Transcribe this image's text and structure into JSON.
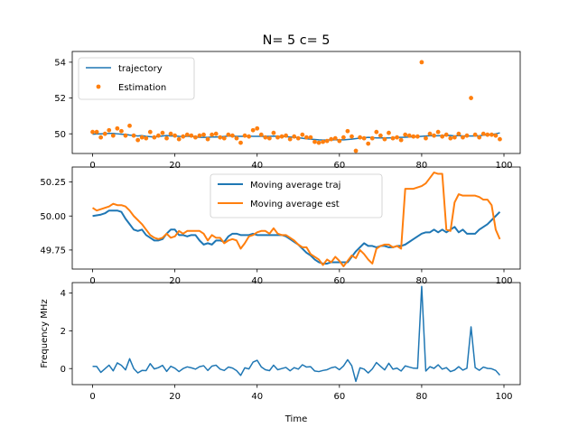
{
  "figure": {
    "title": "N= 5 c= 5"
  },
  "colors": {
    "blue": "#1f77b4",
    "orange": "#ff7f0e"
  },
  "chart_data": [
    {
      "type": "line",
      "legend_position": "upper-left",
      "grid": false,
      "xlim": [
        -4.95,
        103.95
      ],
      "ylim": [
        48.9,
        54.6
      ],
      "xticks": [
        0,
        20,
        40,
        60,
        80,
        100
      ],
      "yticks": [
        50,
        52,
        54
      ],
      "series": [
        {
          "name": "trajectory",
          "style": "line",
          "color": "#1f77b4",
          "x": [
            0,
            1,
            2,
            3,
            4,
            5,
            6,
            7,
            8,
            9,
            10,
            11,
            12,
            13,
            14,
            15,
            16,
            17,
            18,
            19,
            20,
            21,
            22,
            23,
            24,
            25,
            26,
            27,
            28,
            29,
            30,
            31,
            32,
            33,
            34,
            35,
            36,
            37,
            38,
            39,
            40,
            41,
            42,
            43,
            44,
            45,
            46,
            47,
            48,
            49,
            50,
            51,
            52,
            53,
            54,
            55,
            56,
            57,
            58,
            59,
            60,
            61,
            62,
            63,
            64,
            65,
            66,
            67,
            68,
            69,
            70,
            71,
            72,
            73,
            74,
            75,
            76,
            77,
            78,
            79,
            80,
            81,
            82,
            83,
            84,
            85,
            86,
            87,
            88,
            89,
            90,
            91,
            92,
            93,
            94,
            95,
            96,
            97,
            98,
            99
          ],
          "y": [
            49.98,
            49.99,
            50.0,
            50.01,
            50.02,
            50.02,
            50.0,
            49.98,
            49.97,
            49.93,
            49.9,
            49.88,
            49.9,
            49.86,
            49.84,
            49.82,
            49.85,
            49.88,
            49.9,
            49.88,
            49.88,
            49.86,
            49.85,
            49.86,
            49.86,
            49.83,
            49.8,
            49.8,
            49.8,
            49.82,
            49.82,
            49.83,
            49.85,
            49.87,
            49.87,
            49.86,
            49.86,
            49.86,
            49.87,
            49.86,
            49.86,
            49.86,
            49.86,
            49.86,
            49.87,
            49.86,
            49.85,
            49.84,
            49.82,
            49.8,
            49.78,
            49.75,
            49.72,
            49.7,
            49.68,
            49.66,
            49.65,
            49.65,
            49.66,
            49.66,
            49.66,
            49.66,
            49.68,
            49.7,
            49.73,
            49.76,
            49.78,
            49.8,
            49.79,
            49.77,
            49.77,
            49.77,
            49.77,
            49.78,
            49.8,
            49.8,
            49.81,
            49.82,
            49.83,
            49.84,
            49.86,
            49.88,
            49.89,
            49.89,
            49.89,
            49.9,
            49.9,
            49.91,
            49.88,
            49.9,
            49.88,
            49.88,
            49.88,
            49.88,
            49.89,
            49.92,
            49.94,
            49.96,
            50.0,
            50.05
          ]
        },
        {
          "name": "Estimation",
          "style": "points",
          "color": "#ff7f0e",
          "x": [
            0,
            1,
            2,
            3,
            4,
            5,
            6,
            7,
            8,
            9,
            10,
            11,
            12,
            13,
            14,
            15,
            16,
            17,
            18,
            19,
            20,
            21,
            22,
            23,
            24,
            25,
            26,
            27,
            28,
            29,
            30,
            31,
            32,
            33,
            34,
            35,
            36,
            37,
            38,
            39,
            40,
            41,
            42,
            43,
            44,
            45,
            46,
            47,
            48,
            49,
            50,
            51,
            52,
            53,
            54,
            55,
            56,
            57,
            58,
            59,
            60,
            61,
            62,
            63,
            64,
            65,
            66,
            67,
            68,
            69,
            70,
            71,
            72,
            73,
            74,
            75,
            76,
            77,
            78,
            79,
            80,
            81,
            82,
            83,
            84,
            85,
            86,
            87,
            88,
            89,
            90,
            91,
            92,
            93,
            94,
            95,
            96,
            97,
            98,
            99
          ],
          "y": [
            50.1,
            50.1,
            49.8,
            50.0,
            50.2,
            49.9,
            50.3,
            50.15,
            49.9,
            50.45,
            49.9,
            49.65,
            49.8,
            49.75,
            50.1,
            49.8,
            49.9,
            50.05,
            49.75,
            50.0,
            49.9,
            49.7,
            49.85,
            49.95,
            49.9,
            49.8,
            49.9,
            49.95,
            49.7,
            49.95,
            50.0,
            49.8,
            49.75,
            49.95,
            49.9,
            49.75,
            49.5,
            49.9,
            49.85,
            50.2,
            50.3,
            49.95,
            49.8,
            49.75,
            50.05,
            49.8,
            49.85,
            49.9,
            49.7,
            49.85,
            49.75,
            49.95,
            49.8,
            49.8,
            49.55,
            49.5,
            49.55,
            49.6,
            49.7,
            49.75,
            49.6,
            49.8,
            50.15,
            49.85,
            49.05,
            49.8,
            49.75,
            49.45,
            49.75,
            50.1,
            49.9,
            49.7,
            50.05,
            49.75,
            49.8,
            49.65,
            49.95,
            49.9,
            49.85,
            49.85,
            54.0,
            49.75,
            50.0,
            49.9,
            50.1,
            49.85,
            49.95,
            49.75,
            49.8,
            50.0,
            49.8,
            49.9,
            52.0,
            49.95,
            49.8,
            50.0,
            49.95,
            49.95,
            49.9,
            49.7
          ]
        }
      ]
    },
    {
      "type": "line",
      "legend_position": "upper-center",
      "grid": false,
      "xlim": [
        -4.95,
        103.95
      ],
      "ylim": [
        49.61,
        50.36
      ],
      "xticks": [
        0,
        20,
        40,
        60,
        80,
        100
      ],
      "yticks": [
        49.75,
        50.0,
        50.25
      ],
      "yticklabels": [
        "49.75",
        "50.00",
        "50.25"
      ],
      "series": [
        {
          "name": "Moving average traj",
          "style": "line",
          "color": "#1f77b4",
          "x": [
            0,
            2,
            3,
            4,
            5,
            6,
            7,
            8,
            9,
            10,
            11,
            12,
            13,
            14,
            15,
            16,
            17,
            18,
            19,
            20,
            21,
            22,
            23,
            24,
            25,
            26,
            27,
            28,
            29,
            30,
            31,
            32,
            33,
            34,
            35,
            36,
            37,
            38,
            39,
            40,
            41,
            42,
            43,
            44,
            45,
            46,
            47,
            48,
            49,
            50,
            51,
            52,
            53,
            54,
            55,
            56,
            57,
            58,
            59,
            60,
            61,
            62,
            63,
            64,
            65,
            66,
            67,
            68,
            69,
            70,
            71,
            72,
            73,
            74,
            75,
            76,
            77,
            78,
            79,
            80,
            81,
            82,
            83,
            84,
            85,
            86,
            87,
            88,
            89,
            90,
            91,
            92,
            93,
            94,
            95,
            96,
            97,
            98,
            99
          ],
          "y": [
            50.0,
            50.01,
            50.02,
            50.04,
            50.04,
            50.04,
            50.03,
            49.98,
            49.94,
            49.9,
            49.89,
            49.9,
            49.86,
            49.84,
            49.82,
            49.82,
            49.83,
            49.87,
            49.9,
            49.9,
            49.86,
            49.86,
            49.85,
            49.86,
            49.86,
            49.82,
            49.79,
            49.8,
            49.79,
            49.82,
            49.82,
            49.81,
            49.85,
            49.87,
            49.87,
            49.86,
            49.86,
            49.86,
            49.87,
            49.86,
            49.86,
            49.86,
            49.86,
            49.86,
            49.86,
            49.86,
            49.85,
            49.83,
            49.81,
            49.79,
            49.76,
            49.73,
            49.71,
            49.68,
            49.66,
            49.65,
            49.65,
            49.66,
            49.66,
            49.66,
            49.66,
            49.66,
            49.7,
            49.74,
            49.77,
            49.8,
            49.78,
            49.78,
            49.77,
            49.78,
            49.78,
            49.77,
            49.77,
            49.78,
            49.78,
            49.79,
            49.81,
            49.83,
            49.85,
            49.87,
            49.88,
            49.88,
            49.9,
            49.88,
            49.9,
            49.88,
            49.9,
            49.92,
            49.88,
            49.9,
            49.87,
            49.87,
            49.87,
            49.9,
            49.92,
            49.94,
            49.97,
            50.0,
            50.03
          ]
        },
        {
          "name": "Moving average est",
          "style": "line",
          "color": "#ff7f0e",
          "x": [
            0,
            1,
            2,
            3,
            4,
            5,
            6,
            7,
            8,
            9,
            10,
            11,
            12,
            13,
            14,
            15,
            16,
            17,
            18,
            19,
            20,
            21,
            22,
            23,
            24,
            25,
            26,
            27,
            28,
            29,
            30,
            31,
            32,
            33,
            34,
            35,
            36,
            37,
            38,
            39,
            40,
            41,
            42,
            43,
            44,
            45,
            46,
            47,
            48,
            49,
            50,
            51,
            52,
            53,
            54,
            55,
            56,
            57,
            58,
            59,
            60,
            61,
            62,
            63,
            64,
            65,
            66,
            67,
            68,
            69,
            70,
            71,
            72,
            73,
            74,
            75,
            76,
            77,
            78,
            79,
            80,
            81,
            82,
            83,
            84,
            85,
            86,
            87,
            88,
            89,
            90,
            91,
            92,
            93,
            94,
            95,
            96,
            97,
            98,
            99
          ],
          "y": [
            50.06,
            50.04,
            50.05,
            50.06,
            50.07,
            50.09,
            50.08,
            50.08,
            50.07,
            50.04,
            50.0,
            49.97,
            49.94,
            49.9,
            49.86,
            49.84,
            49.83,
            49.84,
            49.87,
            49.84,
            49.85,
            49.89,
            49.87,
            49.89,
            49.89,
            49.89,
            49.89,
            49.87,
            49.82,
            49.86,
            49.84,
            49.84,
            49.8,
            49.82,
            49.83,
            49.82,
            49.76,
            49.8,
            49.85,
            49.86,
            49.88,
            49.89,
            49.89,
            49.87,
            49.91,
            49.87,
            49.86,
            49.86,
            49.84,
            49.82,
            49.79,
            49.77,
            49.77,
            49.72,
            49.7,
            49.68,
            49.64,
            49.68,
            49.66,
            49.7,
            49.67,
            49.63,
            49.67,
            49.71,
            49.69,
            49.75,
            49.72,
            49.68,
            49.65,
            49.76,
            49.78,
            49.79,
            49.79,
            49.77,
            49.78,
            49.76,
            50.2,
            50.2,
            50.2,
            50.21,
            50.22,
            50.24,
            50.28,
            50.32,
            50.31,
            50.31,
            49.9,
            49.89,
            50.1,
            50.16,
            50.15,
            50.15,
            50.15,
            50.15,
            50.14,
            50.12,
            50.12,
            50.08,
            49.9,
            49.83
          ]
        }
      ]
    },
    {
      "type": "line",
      "grid": false,
      "xlim": [
        -4.95,
        103.95
      ],
      "ylim": [
        -0.85,
        4.55
      ],
      "xticks": [
        0,
        20,
        40,
        60,
        80,
        100
      ],
      "yticks": [
        0,
        2,
        4
      ],
      "xlabel": "Time",
      "ylabel": "Frequency MHz",
      "series": [
        {
          "color": "#1f77b4",
          "x": [
            0,
            1,
            2,
            3,
            4,
            5,
            6,
            7,
            8,
            9,
            10,
            11,
            12,
            13,
            14,
            15,
            16,
            17,
            18,
            19,
            20,
            21,
            22,
            23,
            24,
            25,
            26,
            27,
            28,
            29,
            30,
            31,
            32,
            33,
            34,
            35,
            36,
            37,
            38,
            39,
            40,
            41,
            42,
            43,
            44,
            45,
            46,
            47,
            48,
            49,
            50,
            51,
            52,
            53,
            54,
            55,
            56,
            57,
            58,
            59,
            60,
            61,
            62,
            63,
            64,
            65,
            66,
            67,
            68,
            69,
            70,
            71,
            72,
            73,
            74,
            75,
            76,
            77,
            78,
            79,
            80,
            81,
            82,
            83,
            84,
            85,
            86,
            87,
            88,
            89,
            90,
            91,
            92,
            93,
            94,
            95,
            96,
            97,
            98,
            99
          ],
          "y": [
            0.12,
            0.11,
            -0.2,
            -0.01,
            0.18,
            -0.12,
            0.3,
            0.17,
            -0.07,
            0.52,
            0.0,
            -0.23,
            -0.1,
            -0.11,
            0.26,
            -0.02,
            0.05,
            0.17,
            -0.15,
            0.12,
            0.02,
            -0.16,
            0.0,
            0.09,
            0.04,
            -0.03,
            0.1,
            0.15,
            -0.1,
            0.13,
            0.18,
            -0.03,
            -0.1,
            0.08,
            0.03,
            -0.11,
            -0.36,
            0.04,
            -0.02,
            0.34,
            0.44,
            0.09,
            -0.06,
            -0.11,
            0.18,
            -0.06,
            0.0,
            0.06,
            -0.12,
            0.05,
            -0.03,
            0.2,
            0.08,
            0.1,
            -0.13,
            -0.16,
            -0.1,
            -0.06,
            0.04,
            0.09,
            -0.06,
            0.14,
            0.47,
            0.15,
            -0.68,
            0.04,
            -0.03,
            -0.23,
            -0.02,
            0.32,
            0.12,
            -0.07,
            0.28,
            -0.03,
            0.02,
            -0.13,
            0.14,
            0.08,
            0.02,
            0.01,
            4.35,
            -0.13,
            0.1,
            0.01,
            0.2,
            -0.03,
            0.05,
            -0.16,
            -0.08,
            0.1,
            -0.08,
            0.02,
            2.21,
            0.05,
            -0.09,
            0.08,
            0.01,
            -0.01,
            -0.1,
            -0.35
          ]
        }
      ]
    }
  ]
}
